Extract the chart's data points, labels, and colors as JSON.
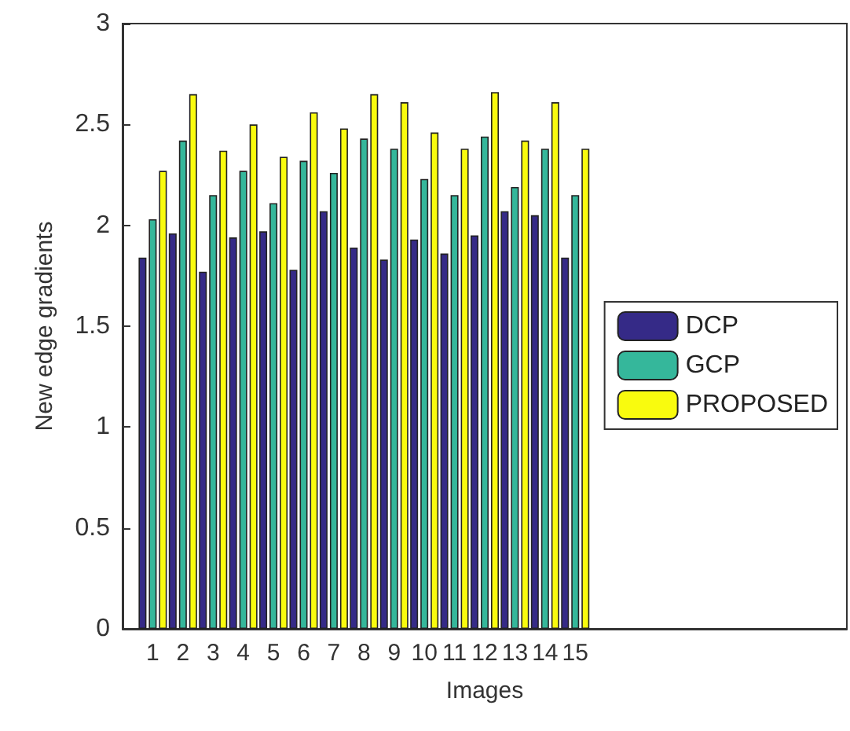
{
  "chart_data": {
    "type": "bar",
    "xlabel": "Images",
    "ylabel": "New edge gradients",
    "x": [
      1,
      2,
      3,
      4,
      5,
      6,
      7,
      8,
      9,
      10,
      11,
      12,
      13,
      14,
      15
    ],
    "xlim": [
      0,
      24
    ],
    "xticks": [
      1,
      2,
      3,
      4,
      5,
      6,
      7,
      8,
      9,
      10,
      11,
      12,
      13,
      14,
      15
    ],
    "ylim": [
      0,
      3
    ],
    "yticks": [
      0,
      0.5,
      1,
      1.5,
      2,
      2.5,
      3
    ],
    "series": [
      {
        "name": "DCP",
        "color": "#352a87",
        "values": [
          1.84,
          1.96,
          1.77,
          1.94,
          1.97,
          1.78,
          2.07,
          1.89,
          1.83,
          1.93,
          1.86,
          1.95,
          2.07,
          2.05,
          1.84
        ]
      },
      {
        "name": "GCP",
        "color": "#35b79b",
        "values": [
          2.03,
          2.42,
          2.15,
          2.27,
          2.11,
          2.32,
          2.26,
          2.43,
          2.38,
          2.23,
          2.15,
          2.44,
          2.19,
          2.38,
          2.15
        ]
      },
      {
        "name": "PROPOSED",
        "color": "#f9fb0e",
        "values": [
          2.27,
          2.65,
          2.37,
          2.5,
          2.34,
          2.56,
          2.48,
          2.65,
          2.61,
          2.46,
          2.38,
          2.66,
          2.42,
          2.61,
          2.38
        ]
      }
    ],
    "legend": "right",
    "grid": false
  }
}
